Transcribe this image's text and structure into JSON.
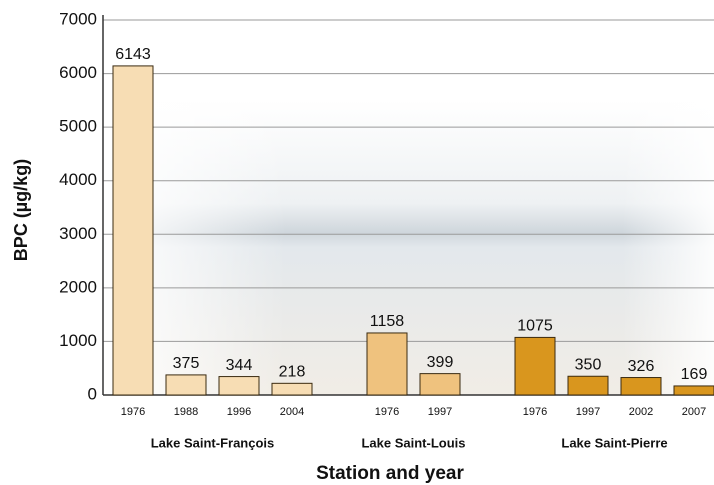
{
  "chart_data": {
    "type": "bar",
    "ylabel": "BPC (µg/kg)",
    "xlabel": "Station and year",
    "ylim": [
      0,
      7000
    ],
    "yticks": [
      0,
      1000,
      2000,
      3000,
      4000,
      5000,
      6000,
      7000
    ],
    "grid": true,
    "groups": [
      {
        "name": "Lake Saint-François",
        "color": "#f7ddb4",
        "categories": [
          "1976",
          "1988",
          "1996",
          "2004"
        ],
        "values": [
          6143,
          375,
          344,
          218
        ]
      },
      {
        "name": "Lake Saint-Louis",
        "color": "#efc27e",
        "categories": [
          "1976",
          "1997"
        ],
        "values": [
          1158,
          399
        ]
      },
      {
        "name": "Lake Saint-Pierre",
        "color": "#d9961e",
        "categories": [
          "1976",
          "1997",
          "2002",
          "2007"
        ],
        "values": [
          1075,
          350,
          326,
          169
        ]
      }
    ]
  }
}
